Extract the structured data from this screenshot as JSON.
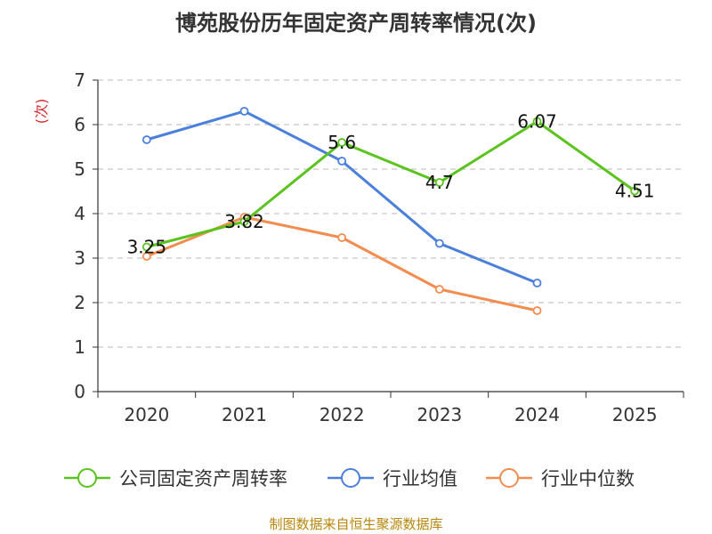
{
  "chart_data": {
    "type": "line",
    "title": "博苑股份历年固定资产周转率情况(次)",
    "ylabel": "(次)",
    "xlabel": "",
    "categories": [
      "2020",
      "2021",
      "2022",
      "2023",
      "2024",
      "2025"
    ],
    "ylim": [
      0,
      7
    ],
    "yticks": [
      0,
      1,
      2,
      3,
      4,
      5,
      6,
      7
    ],
    "grid": true,
    "legend_position": "bottom",
    "series": [
      {
        "name": "公司固定资产周转率",
        "color": "#5ac31e",
        "values": [
          3.25,
          3.82,
          5.6,
          4.7,
          6.07,
          4.51
        ],
        "labels": [
          "3.25",
          "3.82",
          "5.6",
          "4.7",
          "6.07",
          "4.51"
        ]
      },
      {
        "name": "行业均值",
        "color": "#4a7fdc",
        "values": [
          5.66,
          6.3,
          5.18,
          3.33,
          2.44,
          null
        ]
      },
      {
        "name": "行业中位数",
        "color": "#f28c4f",
        "values": [
          3.04,
          3.92,
          3.46,
          2.3,
          1.82,
          null
        ]
      }
    ],
    "source": "制图数据来自恒生聚源数据库"
  }
}
